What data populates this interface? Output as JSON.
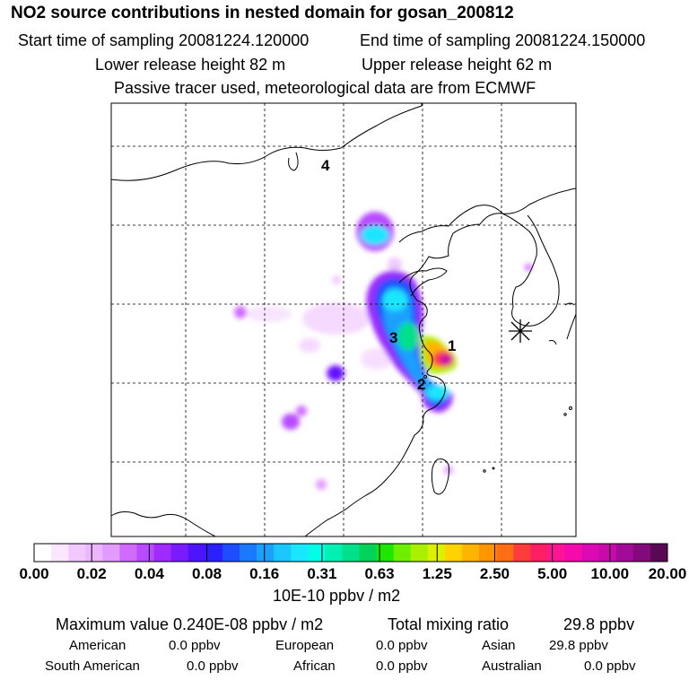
{
  "header": {
    "title": "NO2 source contributions in nested domain for gosan_200812",
    "start_label": "Start time of sampling 20081224.120000",
    "end_label": "End time of sampling 20081224.150000",
    "lower_label": "Lower release height   82 m",
    "upper_label": "Upper release height   62 m",
    "tracer_note": "Passive tracer used, meteorological data are from ECMWF"
  },
  "map": {
    "labels": [
      "1",
      "2",
      "3",
      "4"
    ],
    "receptor_symbol": "gosan-star-icon"
  },
  "colorbar": {
    "ticks": [
      "0.00",
      "0.02",
      "0.04",
      "0.08",
      "0.16",
      "0.31",
      "0.63",
      "1.25",
      "2.50",
      "5.00",
      "10.00",
      "20.00"
    ],
    "unit": "10E-10 ppbv / m2",
    "colors": [
      "#ffffff",
      "#fbe6ff",
      "#f2c9ff",
      "#ecb6ff",
      "#e29cff",
      "#cf6bff",
      "#b84bff",
      "#a02bff",
      "#7a1bff",
      "#4d15ff",
      "#2a20ff",
      "#1e4cff",
      "#1a7aff",
      "#1aa0ff",
      "#1ac8ff",
      "#1ae6ff",
      "#00ffe6",
      "#00f0b4",
      "#00e08c",
      "#00d25a",
      "#1ee600",
      "#6cf000",
      "#aaf000",
      "#dcf000",
      "#ffd200",
      "#ffb400",
      "#ff9600",
      "#ff6e14",
      "#ff3c3c",
      "#ff1e64",
      "#ff1496",
      "#f50aaa",
      "#dc0ab4",
      "#c80aaa",
      "#a00a96",
      "#820a7d",
      "#5a0a55"
    ]
  },
  "stats": {
    "max_label": "Maximum value  0.240E-08 ppbv / m2",
    "total_label": "Total mixing ratio",
    "total_value": "29.8 ppbv",
    "regions": [
      {
        "name": "American",
        "value": "0.0 ppbv"
      },
      {
        "name": "European",
        "value": "0.0 ppbv"
      },
      {
        "name": "Asian",
        "value": "29.8 ppbv"
      },
      {
        "name": "South American",
        "value": "0.0 ppbv"
      },
      {
        "name": "African",
        "value": "0.0 ppbv"
      },
      {
        "name": "Australian",
        "value": "0.0 ppbv"
      }
    ]
  }
}
